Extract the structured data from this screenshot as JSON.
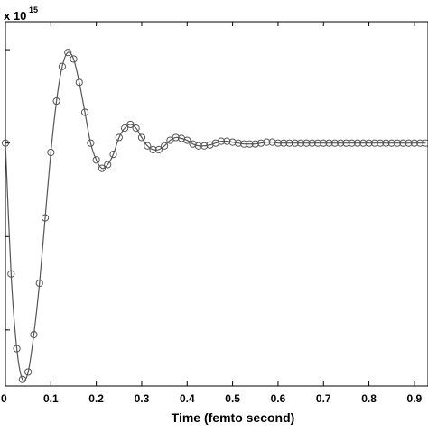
{
  "chart_data": {
    "type": "line",
    "title": "",
    "xlabel": "Time (femto second)",
    "ylabel": "",
    "scale_multiplier_base": "x 10",
    "scale_multiplier_exp": "15",
    "xlim": [
      0,
      0.93
    ],
    "ylim": [
      -2.6,
      1.3
    ],
    "y_ticks": [
      -2,
      -1,
      0,
      1
    ],
    "x_ticks": [
      0,
      0.1,
      0.2,
      0.3,
      0.4,
      0.5,
      0.6,
      0.7,
      0.8,
      0.9
    ],
    "x_tick_labels": [
      "0",
      "0.1",
      "0.2",
      "0.3",
      "0.4",
      "0.5",
      "0.6",
      "0.7",
      "0.8",
      "0.9"
    ],
    "grid": false,
    "line_color": "#555555",
    "marker": "circle",
    "series": [
      {
        "x": [
          0,
          0.0125,
          0.025,
          0.0375,
          0.05,
          0.0625,
          0.075,
          0.0875,
          0.1,
          0.1125,
          0.125,
          0.1375,
          0.15,
          0.1625,
          0.175,
          0.1875,
          0.2,
          0.2125,
          0.225,
          0.2375,
          0.25,
          0.2625,
          0.275,
          0.2875,
          0.3,
          0.3125,
          0.325,
          0.3375,
          0.35,
          0.3625,
          0.375,
          0.3875,
          0.4,
          0.4125,
          0.425,
          0.4375,
          0.45,
          0.4625,
          0.475,
          0.4875,
          0.5,
          0.5125,
          0.525,
          0.5375,
          0.55,
          0.5625,
          0.575,
          0.5875,
          0.6,
          0.6125,
          0.625,
          0.6375,
          0.65,
          0.6625,
          0.675,
          0.6875,
          0.7,
          0.7125,
          0.725,
          0.7375,
          0.75,
          0.7625,
          0.775,
          0.7875,
          0.8,
          0.8125,
          0.825,
          0.8375,
          0.85,
          0.8625,
          0.875,
          0.8875,
          0.9,
          0.9125,
          0.925
        ],
        "y": [
          0.0,
          -1.4,
          -2.2,
          -2.53,
          -2.45,
          -2.05,
          -1.5,
          -0.8,
          -0.1,
          0.45,
          0.82,
          0.97,
          0.9,
          0.65,
          0.33,
          0.0,
          -0.18,
          -0.27,
          -0.23,
          -0.12,
          0.06,
          0.16,
          0.2,
          0.16,
          0.06,
          -0.03,
          -0.07,
          -0.07,
          -0.03,
          0.03,
          0.06,
          0.05,
          0.03,
          -0.01,
          -0.03,
          -0.03,
          -0.02,
          0.0,
          0.02,
          0.02,
          0.01,
          0.0,
          -0.01,
          -0.01,
          -0.01,
          0.0,
          0.01,
          0.01,
          0.0,
          0.0,
          0.0,
          0.0,
          0.0,
          0.0,
          0.0,
          0.0,
          0.0,
          0.0,
          0.0,
          0.0,
          0.0,
          0.0,
          0.0,
          0.0,
          0.0,
          0.0,
          0.0,
          0.0,
          0.0,
          0.0,
          0.0,
          0.0,
          0.0,
          0.0,
          0.0
        ]
      }
    ],
    "marker_x": [
      0.0,
      0.0125,
      0.025,
      0.0375,
      0.05,
      0.0625,
      0.075,
      0.0875,
      0.1,
      0.1125,
      0.125,
      0.1375,
      0.15,
      0.1625,
      0.175,
      0.1875,
      0.2,
      0.2125,
      0.225,
      0.2375,
      0.25,
      0.2625,
      0.275,
      0.2875,
      0.3,
      0.3125,
      0.325,
      0.3375,
      0.35,
      0.3625,
      0.375,
      0.3875,
      0.4,
      0.4125,
      0.425,
      0.4375,
      0.45,
      0.4625,
      0.475,
      0.4875,
      0.5,
      0.5125,
      0.525,
      0.5375,
      0.55,
      0.5625,
      0.575,
      0.5875,
      0.6,
      0.6125,
      0.625,
      0.6375,
      0.65,
      0.6625,
      0.675,
      0.6875,
      0.7,
      0.7125,
      0.725,
      0.7375,
      0.75,
      0.7625,
      0.775,
      0.7875,
      0.8,
      0.8125,
      0.825,
      0.8375,
      0.85,
      0.8625,
      0.875,
      0.8875,
      0.9,
      0.9125,
      0.925
    ]
  }
}
